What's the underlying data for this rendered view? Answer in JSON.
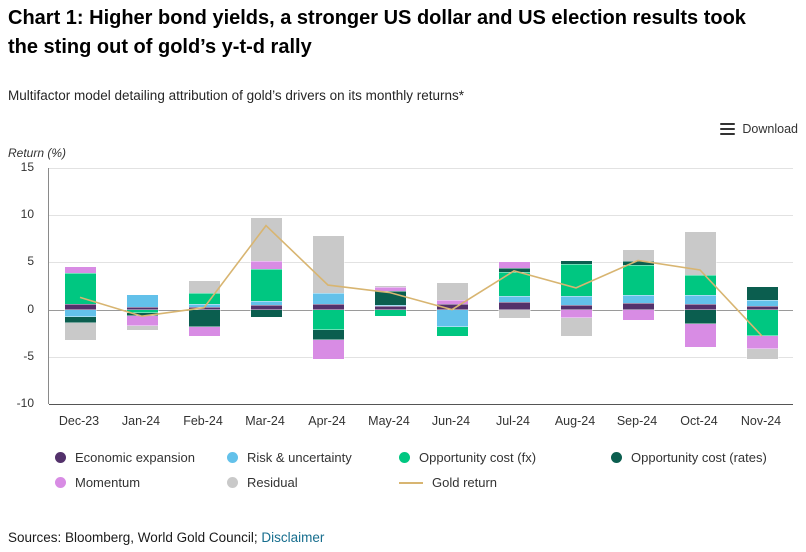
{
  "header": {
    "title": "Chart 1: Higher bond yields, a stronger US dollar and US election results took the sting out of gold’s y-t-d rally",
    "subtitle": "Multifactor model detailing attribution of gold’s drivers on its monthly returns*"
  },
  "toolbar": {
    "download_label": "Download",
    "download_icon": "hamburger-menu-icon"
  },
  "footer": {
    "sources_text": "Sources: Bloomberg, World Gold Council; ",
    "disclaimer_label": "Disclaimer"
  },
  "chart_data": {
    "type": "bar",
    "stacked": true,
    "title": "Chart 1: Higher bond yields, a stronger US dollar and US election results took the sting out of gold’s y-t-d rally",
    "subtitle": "Multifactor model detailing attribution of gold’s drivers on its monthly returns*",
    "xlabel": "",
    "ylabel": "Return (%)",
    "ylim": [
      -10,
      15
    ],
    "yticks": [
      15,
      10,
      5,
      0,
      -5,
      -10
    ],
    "grid": true,
    "legend_position": "bottom",
    "categories": [
      "Dec-23",
      "Jan-24",
      "Feb-24",
      "Mar-24",
      "Apr-24",
      "May-24",
      "Jun-24",
      "Jul-24",
      "Aug-24",
      "Sep-24",
      "Oct-24",
      "Nov-24"
    ],
    "series": [
      {
        "name": "Economic expansion",
        "color": "#53316b",
        "values": [
          0.6,
          0.3,
          0.3,
          0.5,
          0.6,
          0.4,
          0.6,
          0.8,
          0.5,
          0.7,
          0.6,
          0.4
        ]
      },
      {
        "name": "Risk & uncertainty",
        "color": "#63c1ea",
        "values": [
          -0.8,
          1.2,
          0.3,
          0.4,
          1.2,
          0.1,
          -1.8,
          0.6,
          0.9,
          0.8,
          0.9,
          0.6
        ]
      },
      {
        "name": "Opportunity cost (fx)",
        "color": "#00c781",
        "values": [
          3.3,
          -0.4,
          1.2,
          3.4,
          -2.2,
          -0.7,
          -1.0,
          2.6,
          3.4,
          3.2,
          2.2,
          -2.8
        ]
      },
      {
        "name": "Opportunity cost (rates)",
        "color": "#0b5e4f",
        "values": [
          -0.6,
          -0.3,
          -1.8,
          -0.8,
          -1.0,
          1.5,
          0.0,
          0.4,
          0.3,
          0.4,
          -1.5,
          1.4
        ]
      },
      {
        "name": "Momentum",
        "color": "#d88ce4",
        "values": [
          0.6,
          -1.0,
          -1.0,
          0.8,
          -2.0,
          0.4,
          0.4,
          0.6,
          -0.9,
          -1.1,
          -2.5,
          -1.4
        ]
      },
      {
        "name": "Residual",
        "color": "#c9c9c9",
        "values": [
          -1.8,
          -0.5,
          1.2,
          4.6,
          6.0,
          0.1,
          1.8,
          -0.9,
          -1.9,
          1.2,
          4.5,
          -1.0
        ]
      }
    ],
    "line": {
      "name": "Gold return",
      "color": "#d8b571",
      "values": [
        1.3,
        -0.7,
        0.2,
        8.9,
        2.6,
        1.8,
        0.0,
        4.1,
        2.3,
        5.2,
        4.2,
        -2.8
      ]
    }
  }
}
